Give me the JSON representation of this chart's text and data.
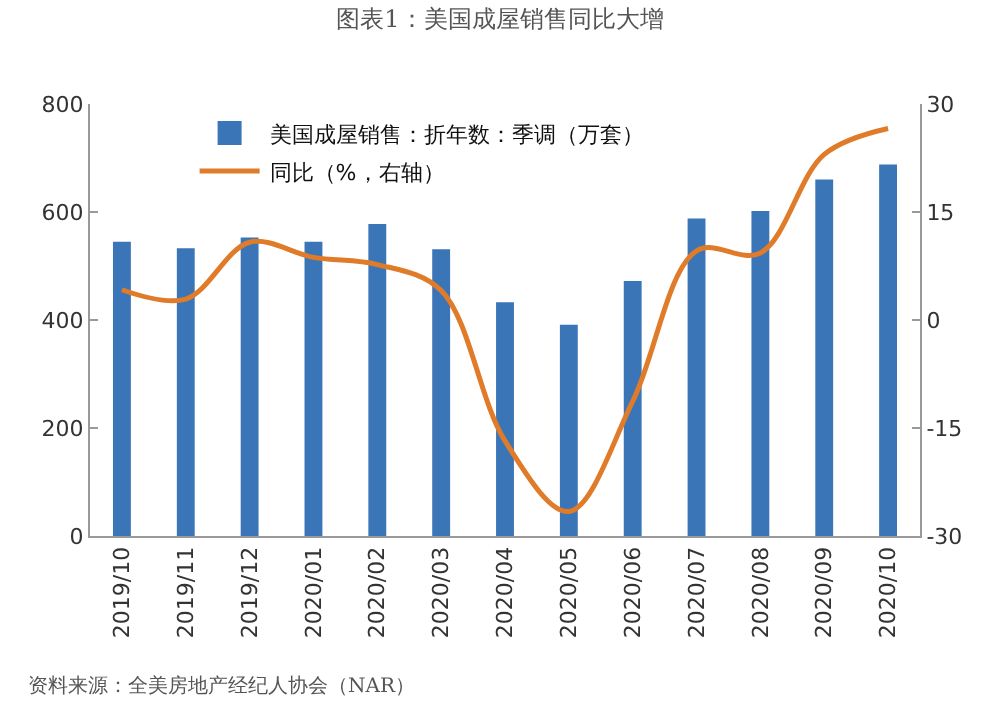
{
  "chart_data": {
    "type": "bar",
    "title": "图表1：美国成屋销售同比大增",
    "categories": [
      "2019/10",
      "2019/11",
      "2019/12",
      "2020/01",
      "2020/02",
      "2020/03",
      "2020/04",
      "2020/05",
      "2020/06",
      "2020/07",
      "2020/08",
      "2020/09",
      "2020/10"
    ],
    "series": [
      {
        "name": "美国成屋销售：折年数：季调（万套）",
        "color": "#3a75b8",
        "values": [
          545,
          533,
          553,
          545,
          578,
          531,
          433,
          391,
          472,
          588,
          602,
          660,
          688
        ]
      },
      {
        "name": "同比（%，右轴）",
        "type": "line",
        "axis": "y2",
        "color": "#e07b2a",
        "values": [
          4.2,
          2.9,
          10.8,
          8.7,
          7.7,
          4.1,
          -16.8,
          -26.6,
          -11.3,
          9.6,
          9.3,
          23,
          26.6
        ]
      }
    ],
    "ylim": [
      0,
      800
    ],
    "yticks": [
      0,
      200,
      400,
      600,
      800
    ],
    "y2lim": [
      -30,
      30
    ],
    "y2ticks": [
      -30,
      -15,
      0,
      15,
      30
    ],
    "grid": false,
    "legend": "top",
    "annotations": [
      "资料来源：全美房地产经纪人协会（NAR）"
    ]
  }
}
